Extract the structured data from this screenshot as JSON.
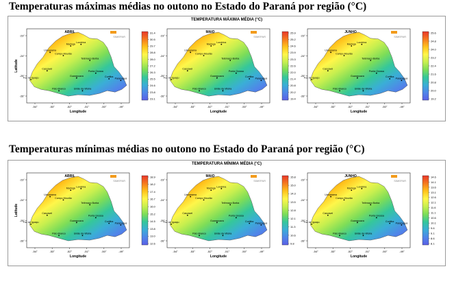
{
  "headings": {
    "max": "Temperaturas máximas médias no outono no Estado do Paraná por região (°C)",
    "min": "Temperaturas mínimas médias no outono no Estado do Paraná por região (°C)"
  },
  "panels": [
    {
      "key": "max",
      "title": "TEMPERATURA MÁXIMA MÉDIA (°C)",
      "maps": [
        {
          "month": "ABRIL",
          "legend": [
            "31.4",
            "30.5",
            "29.7",
            "28.8",
            "28.0",
            "27.2",
            "26.3",
            "25.5",
            "24.6",
            "23.8",
            "23.1"
          ],
          "gradient": [
            "#e8362a",
            "#f5791f",
            "#ffc21c",
            "#fff64a",
            "#c7ef4f",
            "#7ddd58",
            "#35c79a",
            "#3aaed6",
            "#4f86e8",
            "#5a5fe6"
          ]
        },
        {
          "month": "MAIO",
          "legend": [
            "25.9",
            "25.2",
            "24.6",
            "23.9",
            "23.3",
            "22.6",
            "22.0",
            "21.4",
            "20.8",
            "20.2",
            "19.4"
          ],
          "gradient": [
            "#e8362a",
            "#f5791f",
            "#ffc21c",
            "#fff64a",
            "#c7ef4f",
            "#7ddd58",
            "#35c79a",
            "#3aaed6",
            "#4f86e8",
            "#5a5fe6"
          ]
        },
        {
          "month": "JUNHO",
          "legend": [
            "25.6",
            "24.8",
            "24.0",
            "23.2",
            "22.4",
            "21.6",
            "20.8",
            "20.0",
            "19.2"
          ],
          "gradient": [
            "#e8362a",
            "#f5791f",
            "#ffc21c",
            "#fff64a",
            "#c7ef4f",
            "#7ddd58",
            "#35c79a",
            "#3aaed6",
            "#4f86e8",
            "#5a5fe6"
          ]
        }
      ]
    },
    {
      "key": "min",
      "title": "TEMPERATURA MÍNIMA MÉDIA (°C)",
      "maps": [
        {
          "month": "ABRIL",
          "legend": [
            "18.9",
            "18.2",
            "17.4",
            "16.7",
            "16.0",
            "15.2",
            "14.5",
            "13.8",
            "13.0",
            "12.6"
          ],
          "gradient": [
            "#e8362a",
            "#f5791f",
            "#ffc21c",
            "#fff64a",
            "#c7ef4f",
            "#7ddd58",
            "#35c79a",
            "#3aaed6",
            "#4f86e8",
            "#5a5fe6"
          ]
        },
        {
          "month": "MAIO",
          "legend": [
            "15.8",
            "15.0",
            "14.3",
            "13.5",
            "12.8",
            "12.1",
            "11.3",
            "10.6",
            "9.8"
          ],
          "gradient": [
            "#e8362a",
            "#f5791f",
            "#ffc21c",
            "#fff64a",
            "#c7ef4f",
            "#7ddd58",
            "#35c79a",
            "#3aaed6",
            "#4f86e8",
            "#5a5fe6"
          ]
        },
        {
          "month": "JUNHO",
          "legend": [
            "14.6",
            "14.1",
            "13.6",
            "13.1",
            "12.6",
            "12.1",
            "11.6",
            "11.1",
            "10.6",
            "10.1",
            "9.6",
            "9.1",
            "8.6",
            "8.1"
          ],
          "gradient": [
            "#e8362a",
            "#f5791f",
            "#ffc21c",
            "#fff64a",
            "#c7ef4f",
            "#7ddd58",
            "#35c79a",
            "#3aaed6",
            "#4f86e8",
            "#5a5fe6"
          ]
        }
      ]
    }
  ],
  "axes": {
    "xlabel": "Longitude",
    "ylabel": "Latitude",
    "xticks": [
      "-54°",
      "-53°",
      "-52°",
      "-51°",
      "-50°",
      "-49°"
    ],
    "yticks": [
      "-23°",
      "-24°",
      "-25°",
      "-26°"
    ]
  },
  "cities": [
    {
      "name": "Maringá",
      "lon": -51.9,
      "lat": -23.4
    },
    {
      "name": "Umuarama",
      "lon": -53.3,
      "lat": -23.8
    },
    {
      "name": "Londrina",
      "lon": -51.2,
      "lat": -23.3
    },
    {
      "name": "Campo Mourão",
      "lon": -52.4,
      "lat": -24.0
    },
    {
      "name": "Telêmaco Borba",
      "lon": -50.6,
      "lat": -24.3
    },
    {
      "name": "Cascavel",
      "lon": -53.5,
      "lat": -24.95
    },
    {
      "name": "Ponta Grossa",
      "lon": -50.2,
      "lat": -25.1
    },
    {
      "name": "Guarapuava",
      "lon": -51.5,
      "lat": -25.4
    },
    {
      "name": "Curitiba",
      "lon": -49.3,
      "lat": -25.45
    },
    {
      "name": "Paranaguá",
      "lon": -48.5,
      "lat": -25.55
    },
    {
      "name": "Foz do Iguaçu",
      "lon": -54.6,
      "lat": -25.5
    },
    {
      "name": "Pato Branco",
      "lon": -52.7,
      "lat": -26.2
    },
    {
      "name": "União da Vitória",
      "lon": -51.1,
      "lat": -26.2
    }
  ],
  "logo_text": "SIMEPAR"
}
